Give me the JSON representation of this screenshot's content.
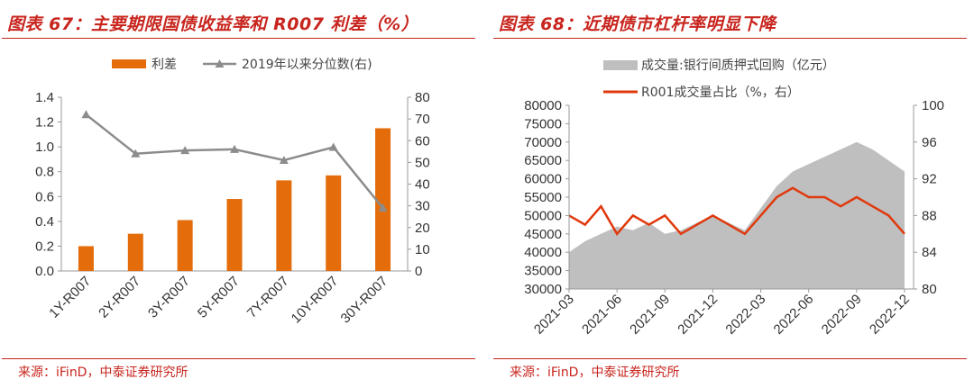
{
  "left": {
    "title": "图表 67：主要期限国债收益率和 R007 利差（%）",
    "source": "来源：iFinD，中泰证券研究所",
    "legend": [
      "利差",
      "2019年以来分位数(右)"
    ],
    "chart_data": {
      "type": "bar",
      "categories": [
        "1Y-R007",
        "2Y-R007",
        "3Y-R007",
        "5Y-R007",
        "7Y-R007",
        "10Y-R007",
        "30Y-R007"
      ],
      "series": [
        {
          "name": "利差",
          "type": "bar",
          "axis": "left",
          "color": "#e46c0a",
          "values": [
            0.2,
            0.3,
            0.41,
            0.58,
            0.73,
            0.77,
            1.15
          ]
        },
        {
          "name": "2019年以来分位数(右)",
          "type": "line",
          "axis": "right",
          "color": "#8c8c8c",
          "values": [
            72,
            54,
            55.5,
            56,
            51,
            57,
            29
          ]
        }
      ],
      "ylim": [
        0,
        1.4
      ],
      "yticks": [
        "0.0",
        "0.2",
        "0.4",
        "0.6",
        "0.8",
        "1.0",
        "1.2",
        "1.4"
      ],
      "y2lim": [
        0,
        80
      ],
      "y2ticks": [
        "0",
        "10",
        "20",
        "30",
        "40",
        "50",
        "60",
        "70",
        "80"
      ],
      "legend_position": "top"
    }
  },
  "right": {
    "title": "图表 68：近期债市杠杆率明显下降",
    "source": "来源：iFinD，中泰证券研究所",
    "legend": [
      "成交量:银行间质押式回购（亿元）",
      "R001成交量占比（%，右）"
    ],
    "chart_data": {
      "type": "area",
      "x_range": [
        "2021-03",
        "2022-12"
      ],
      "xticks": [
        "2021-03",
        "2021-06",
        "2021-09",
        "2021-12",
        "2022-03",
        "2022-06",
        "2022-09",
        "2022-12"
      ],
      "series": [
        {
          "name": "成交量:银行间质押式回购（亿元）",
          "type": "area",
          "axis": "left",
          "color": "#bfbfbf",
          "x": [
            "2021-03",
            "2021-04",
            "2021-05",
            "2021-06",
            "2021-07",
            "2021-08",
            "2021-09",
            "2021-10",
            "2021-11",
            "2021-12",
            "2022-01",
            "2022-02",
            "2022-03",
            "2022-04",
            "2022-05",
            "2022-06",
            "2022-07",
            "2022-08",
            "2022-09",
            "2022-10",
            "2022-11",
            "2022-12"
          ],
          "values": [
            40000,
            43000,
            45000,
            47000,
            46000,
            48000,
            45000,
            46000,
            48000,
            50000,
            48000,
            46000,
            52000,
            58000,
            62000,
            64000,
            66000,
            68000,
            70000,
            68000,
            65000,
            62000
          ]
        },
        {
          "name": "R001成交量占比（%，右）",
          "type": "line",
          "axis": "right",
          "color": "#e0390d",
          "x": [
            "2021-03",
            "2021-04",
            "2021-05",
            "2021-06",
            "2021-07",
            "2021-08",
            "2021-09",
            "2021-10",
            "2021-11",
            "2021-12",
            "2022-01",
            "2022-02",
            "2022-03",
            "2022-04",
            "2022-05",
            "2022-06",
            "2022-07",
            "2022-08",
            "2022-09",
            "2022-10",
            "2022-11",
            "2022-12"
          ],
          "values": [
            88,
            87,
            89,
            86,
            88,
            87,
            88,
            86,
            87,
            88,
            87,
            86,
            88,
            90,
            91,
            90,
            90,
            89,
            90,
            89,
            88,
            86
          ]
        }
      ],
      "ylim": [
        30000,
        80000
      ],
      "yticks": [
        "30000",
        "35000",
        "40000",
        "45000",
        "50000",
        "55000",
        "60000",
        "65000",
        "70000",
        "75000",
        "80000"
      ],
      "y2lim": [
        80,
        100
      ],
      "y2ticks": [
        "80",
        "84",
        "88",
        "92",
        "96",
        "100"
      ],
      "legend_position": "top"
    }
  }
}
